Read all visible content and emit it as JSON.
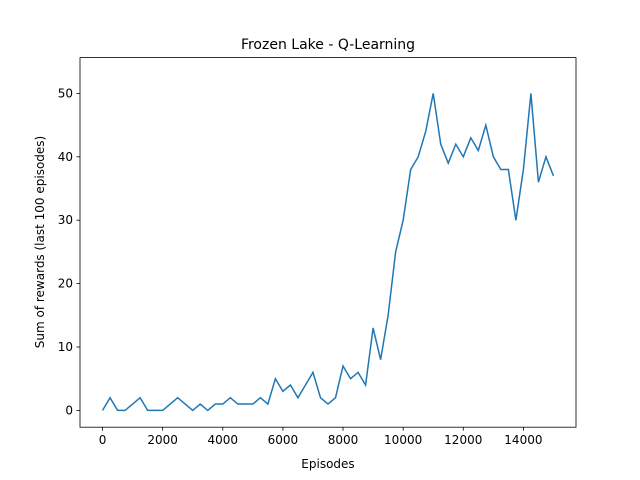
{
  "chart_data": {
    "type": "line",
    "title": "Frozen Lake - Q-Learning",
    "x_label": "Episodes",
    "y_label": "Sum of rewards (last 100 episodes)",
    "x": [
      0,
      250,
      500,
      750,
      1000,
      1250,
      1500,
      1750,
      2000,
      2250,
      2500,
      2750,
      3000,
      3250,
      3500,
      3750,
      4000,
      4250,
      4500,
      4750,
      5000,
      5250,
      5500,
      5750,
      6000,
      6250,
      6500,
      6750,
      7000,
      7250,
      7500,
      7750,
      8000,
      8250,
      8500,
      8750,
      9000,
      9250,
      9500,
      9750,
      10000,
      10250,
      10500,
      10750,
      11000,
      11250,
      11500,
      11750,
      12000,
      12250,
      12500,
      12750,
      13000,
      13250,
      13500,
      13750,
      14000,
      14250,
      14500,
      14750,
      15000
    ],
    "series": [
      {
        "name": "Sum of rewards",
        "color": "#1f77b4",
        "values": [
          0,
          2,
          0,
          0,
          1,
          2,
          0,
          0,
          0,
          1,
          2,
          1,
          0,
          1,
          0,
          1,
          1,
          2,
          1,
          1,
          1,
          2,
          1,
          5,
          3,
          4,
          2,
          4,
          6,
          2,
          1,
          2,
          7,
          5,
          6,
          4,
          13,
          8,
          15,
          25,
          30,
          38,
          40,
          44,
          50,
          42,
          39,
          42,
          40,
          43,
          41,
          45,
          40,
          38,
          38,
          30,
          38,
          50,
          36,
          40,
          37
        ]
      }
    ],
    "xlim": [
      -750,
      15750
    ],
    "ylim": [
      -2.65,
      55.65
    ],
    "xticks": [
      0,
      2000,
      4000,
      6000,
      8000,
      10000,
      12000,
      14000
    ],
    "yticks": [
      0,
      10,
      20,
      30,
      40,
      50
    ]
  }
}
